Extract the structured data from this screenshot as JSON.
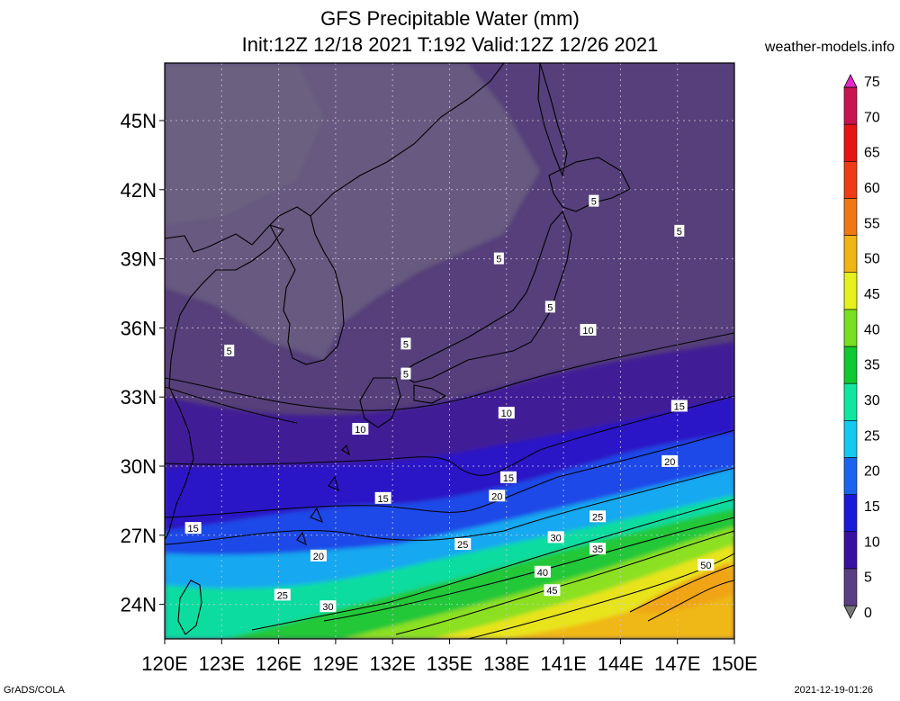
{
  "title": "GFS Precipitable Water (mm)",
  "subtitle": "Init:12Z 12/18 2021 T:192 Valid:12Z 12/26 2021",
  "site": "weather-models.info",
  "footer_left": "GrADS/COLA",
  "footer_right": "2021-12-19-01:26",
  "lat_labels": [
    "45N",
    "42N",
    "39N",
    "36N",
    "33N",
    "30N",
    "27N",
    "24N"
  ],
  "lon_labels": [
    "120E",
    "123E",
    "126E",
    "129E",
    "132E",
    "135E",
    "138E",
    "141E",
    "144E",
    "147E",
    "150E"
  ],
  "colorbar": {
    "labels": [
      "0",
      "5",
      "10",
      "15",
      "20",
      "25",
      "30",
      "35",
      "40",
      "45",
      "50",
      "55",
      "60",
      "65",
      "70",
      "75"
    ],
    "colors": [
      "#787878",
      "#5a3d82",
      "#3a10a0",
      "#1a1ad8",
      "#1a64f0",
      "#14c8f0",
      "#10e6a0",
      "#10c830",
      "#78e020",
      "#e6f01e",
      "#f0b414",
      "#f07814",
      "#f03c14",
      "#e61414",
      "#c81450",
      "#e628c8"
    ]
  },
  "map": {
    "lat_range": [
      22.5,
      47.5
    ],
    "lon_range": [
      120,
      150
    ],
    "contour_levels": [
      5,
      10,
      15,
      20,
      25,
      30,
      35,
      40,
      45,
      50
    ]
  },
  "contour_labels": [
    {
      "text": "5",
      "lon": 123.4,
      "lat": 35.0
    },
    {
      "text": "5",
      "lon": 132.7,
      "lat": 35.3
    },
    {
      "text": "5",
      "lon": 132.7,
      "lat": 34.0
    },
    {
      "text": "5",
      "lon": 137.6,
      "lat": 39.0
    },
    {
      "text": "5",
      "lon": 140.3,
      "lat": 36.9
    },
    {
      "text": "5",
      "lon": 142.6,
      "lat": 41.5
    },
    {
      "text": "5",
      "lon": 147.1,
      "lat": 40.2
    },
    {
      "text": "10",
      "lon": 130.3,
      "lat": 31.6
    },
    {
      "text": "10",
      "lon": 138.0,
      "lat": 32.3
    },
    {
      "text": "10",
      "lon": 142.3,
      "lat": 35.9
    },
    {
      "text": "15",
      "lon": 147.1,
      "lat": 32.6
    },
    {
      "text": "15",
      "lon": 121.5,
      "lat": 27.3
    },
    {
      "text": "15",
      "lon": 131.5,
      "lat": 28.6
    },
    {
      "text": "15",
      "lon": 138.1,
      "lat": 29.5
    },
    {
      "text": "20",
      "lon": 146.6,
      "lat": 30.2
    },
    {
      "text": "20",
      "lon": 137.5,
      "lat": 28.7
    },
    {
      "text": "20",
      "lon": 128.1,
      "lat": 26.1
    },
    {
      "text": "25",
      "lon": 142.8,
      "lat": 27.8
    },
    {
      "text": "25",
      "lon": 135.7,
      "lat": 26.6
    },
    {
      "text": "25",
      "lon": 126.2,
      "lat": 24.4
    },
    {
      "text": "30",
      "lon": 140.6,
      "lat": 26.9
    },
    {
      "text": "30",
      "lon": 128.6,
      "lat": 23.9
    },
    {
      "text": "35",
      "lon": 142.8,
      "lat": 26.4
    },
    {
      "text": "40",
      "lon": 139.9,
      "lat": 25.4
    },
    {
      "text": "45",
      "lon": 140.4,
      "lat": 24.6
    },
    {
      "text": "50",
      "lon": 148.5,
      "lat": 25.7
    }
  ]
}
